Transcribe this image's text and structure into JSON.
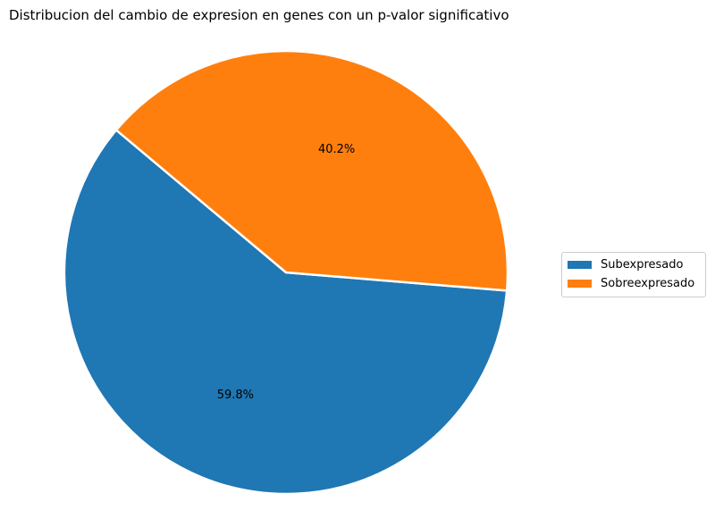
{
  "chart_data": {
    "type": "pie",
    "title": "Distribucion del cambio de expresion en genes con un p-valor significativo",
    "slices": [
      {
        "label": "Subexpresado",
        "value": 59.8,
        "pct_label": "59.8%",
        "color": "#1f77b4"
      },
      {
        "label": "Sobreexpresado",
        "value": 40.2,
        "pct_label": "40.2%",
        "color": "#ff7f0e"
      }
    ],
    "start_angle_deg": 140,
    "legend_position": "center-right"
  }
}
